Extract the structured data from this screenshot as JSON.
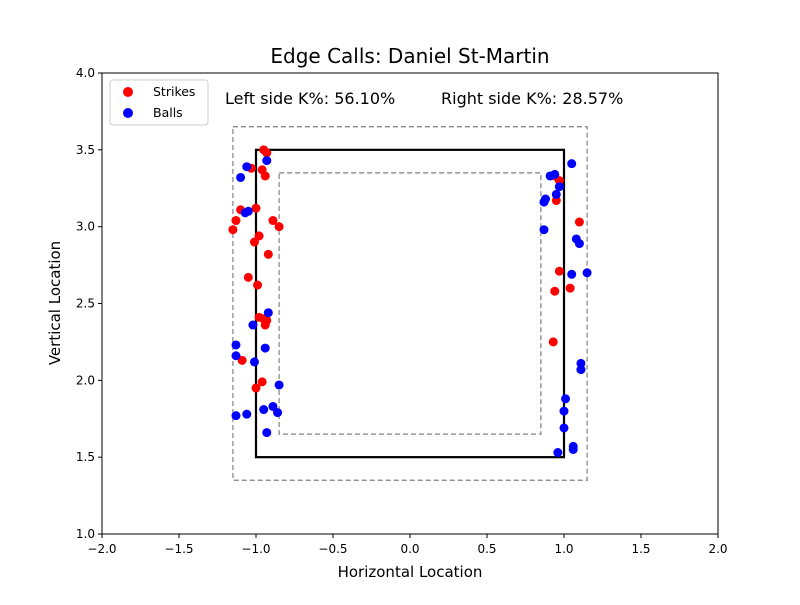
{
  "chart_data": {
    "type": "scatter",
    "title": "Edge Calls: Daniel St-Martin",
    "xlabel": "Horizontal Location",
    "ylabel": "Vertical Location",
    "xlim": [
      -2.0,
      2.0
    ],
    "ylim": [
      1.0,
      4.0
    ],
    "x_ticks": [
      "−2.0",
      "−1.5",
      "−1.0",
      "−0.5",
      "0.0",
      "0.5",
      "1.0",
      "1.5",
      "2.0"
    ],
    "y_ticks": [
      "1.0",
      "1.5",
      "2.0",
      "2.5",
      "3.0",
      "3.5",
      "4.0"
    ],
    "x_tick_values": [
      -2.0,
      -1.5,
      -1.0,
      -0.5,
      0.0,
      0.5,
      1.0,
      1.5,
      2.0
    ],
    "y_tick_values": [
      1.0,
      1.5,
      2.0,
      2.5,
      3.0,
      3.5,
      4.0
    ],
    "grid": false,
    "legend_position": "top-left",
    "annotations": {
      "left": "Left side K%: 56.10%",
      "right": "Right side K%: 28.57%"
    },
    "zones": {
      "strike_zone": {
        "x": [
          -1.0,
          1.0
        ],
        "y": [
          1.5,
          3.5
        ],
        "style": "solid",
        "color": "#000000"
      },
      "outer_edge": {
        "x": [
          -1.15,
          1.15
        ],
        "y": [
          1.35,
          3.65
        ],
        "style": "dashed",
        "color": "#808080"
      },
      "inner_edge": {
        "x": [
          -0.85,
          0.85
        ],
        "y": [
          1.65,
          3.35
        ],
        "style": "dashed",
        "color": "#808080"
      }
    },
    "series": [
      {
        "name": "Strikes",
        "color": "#ff0000",
        "points": [
          [
            -0.95,
            3.5
          ],
          [
            -0.93,
            3.48
          ],
          [
            -1.03,
            3.38
          ],
          [
            -0.96,
            3.37
          ],
          [
            -0.94,
            3.33
          ],
          [
            -1.1,
            3.11
          ],
          [
            -1.0,
            3.12
          ],
          [
            -1.13,
            3.04
          ],
          [
            -0.89,
            3.04
          ],
          [
            -0.85,
            3.0
          ],
          [
            -1.15,
            2.98
          ],
          [
            -0.98,
            2.94
          ],
          [
            -1.01,
            2.9
          ],
          [
            -0.92,
            2.82
          ],
          [
            -1.05,
            2.67
          ],
          [
            -0.99,
            2.62
          ],
          [
            -0.98,
            2.41
          ],
          [
            -0.95,
            2.4
          ],
          [
            -0.93,
            2.39
          ],
          [
            -0.94,
            2.36
          ],
          [
            -1.09,
            2.13
          ],
          [
            -0.96,
            1.99
          ],
          [
            -1.0,
            1.95
          ],
          [
            0.94,
            3.33
          ],
          [
            0.97,
            3.3
          ],
          [
            0.95,
            3.17
          ],
          [
            1.1,
            3.03
          ],
          [
            0.97,
            2.71
          ],
          [
            1.04,
            2.6
          ],
          [
            0.94,
            2.58
          ],
          [
            0.93,
            2.25
          ]
        ]
      },
      {
        "name": "Balls",
        "color": "#0000ff",
        "points": [
          [
            -0.93,
            3.43
          ],
          [
            -1.06,
            3.39
          ],
          [
            -1.1,
            3.32
          ],
          [
            -1.05,
            3.1
          ],
          [
            -1.07,
            3.09
          ],
          [
            -0.92,
            2.44
          ],
          [
            -1.02,
            2.36
          ],
          [
            -1.13,
            2.23
          ],
          [
            -0.94,
            2.21
          ],
          [
            -1.13,
            2.16
          ],
          [
            -1.01,
            2.12
          ],
          [
            -0.85,
            1.97
          ],
          [
            -0.89,
            1.83
          ],
          [
            -0.95,
            1.81
          ],
          [
            -0.86,
            1.79
          ],
          [
            -1.06,
            1.78
          ],
          [
            -1.13,
            1.77
          ],
          [
            -0.93,
            1.66
          ],
          [
            0.91,
            3.33
          ],
          [
            0.94,
            3.34
          ],
          [
            1.05,
            3.41
          ],
          [
            0.97,
            3.26
          ],
          [
            0.95,
            3.21
          ],
          [
            0.88,
            3.18
          ],
          [
            0.87,
            3.16
          ],
          [
            0.87,
            2.98
          ],
          [
            1.08,
            2.92
          ],
          [
            1.1,
            2.89
          ],
          [
            1.15,
            2.7
          ],
          [
            1.05,
            2.69
          ],
          [
            1.11,
            2.11
          ],
          [
            1.11,
            2.07
          ],
          [
            1.01,
            1.88
          ],
          [
            1.0,
            1.8
          ],
          [
            1.0,
            1.69
          ],
          [
            1.06,
            1.57
          ],
          [
            1.06,
            1.55
          ],
          [
            0.96,
            1.53
          ]
        ]
      }
    ]
  }
}
